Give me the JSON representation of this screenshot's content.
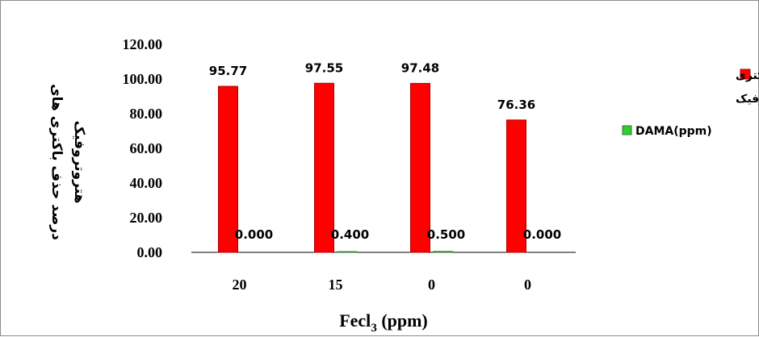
{
  "chart_data": {
    "type": "bar",
    "categories": [
      "20",
      "15",
      "0",
      "0"
    ],
    "series": [
      {
        "name": "درصد حذف باکتری های هتروتروفیک",
        "values": [
          95.77,
          97.55,
          97.48,
          76.36
        ],
        "labels": [
          "95.77",
          "97.55",
          "97.48",
          "76.36"
        ],
        "color": "#ff0000",
        "border": "#b00000"
      },
      {
        "name": "DAMA(ppm)",
        "values": [
          0.0,
          0.4,
          0.5,
          0.0
        ],
        "labels": [
          "0.000",
          "0.400",
          "0.500",
          "0.000"
        ],
        "color": "#33cc33",
        "border": "#2a7a2a"
      }
    ],
    "ylim": [
      0,
      120
    ],
    "yticks": [
      "0.00",
      "20.00",
      "40.00",
      "60.00",
      "80.00",
      "100.00",
      "120.00"
    ],
    "xlabel": {
      "main": "Fecl",
      "sub": "3",
      "rest": " (ppm)"
    },
    "ylabel": [
      "درصد حذف باکتری های",
      "هتروتروفیک"
    ],
    "legend_lines": [
      "درصد حذف باکتری",
      "های هتروتروفیک",
      "DAMA(ppm)"
    ],
    "legend_position": "right",
    "grid": false
  }
}
